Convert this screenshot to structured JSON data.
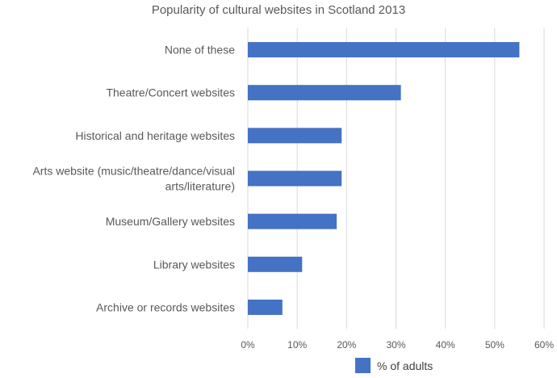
{
  "chart_data": {
    "type": "bar",
    "orientation": "horizontal",
    "title": "Popularity of cultural websites in Scotland 2013",
    "categories": [
      "None of these",
      "Theatre/Concert websites",
      "Historical and heritage websites",
      "Arts website (music/theatre/dance/visual arts/literature)",
      "Museum/Gallery websites",
      "Library websites",
      "Archive or records websites"
    ],
    "category_lines": [
      [
        "None of these"
      ],
      [
        "Theatre/Concert websites"
      ],
      [
        "Historical and heritage websites"
      ],
      [
        "Arts website (music/theatre/dance/visual",
        "arts/literature)"
      ],
      [
        "Museum/Gallery websites"
      ],
      [
        "Library websites"
      ],
      [
        "Archive or records websites"
      ]
    ],
    "series": [
      {
        "name": "% of adults",
        "values": [
          55,
          31,
          19,
          19,
          18,
          11,
          7
        ],
        "color": "#4472C4"
      }
    ],
    "xlim": [
      0,
      60
    ],
    "xticks": [
      0,
      10,
      20,
      30,
      40,
      50,
      60
    ],
    "xtick_labels": [
      "0%",
      "10%",
      "20%",
      "30%",
      "40%",
      "50%",
      "60%"
    ],
    "grid": "vertical",
    "legend_position": "bottom"
  }
}
